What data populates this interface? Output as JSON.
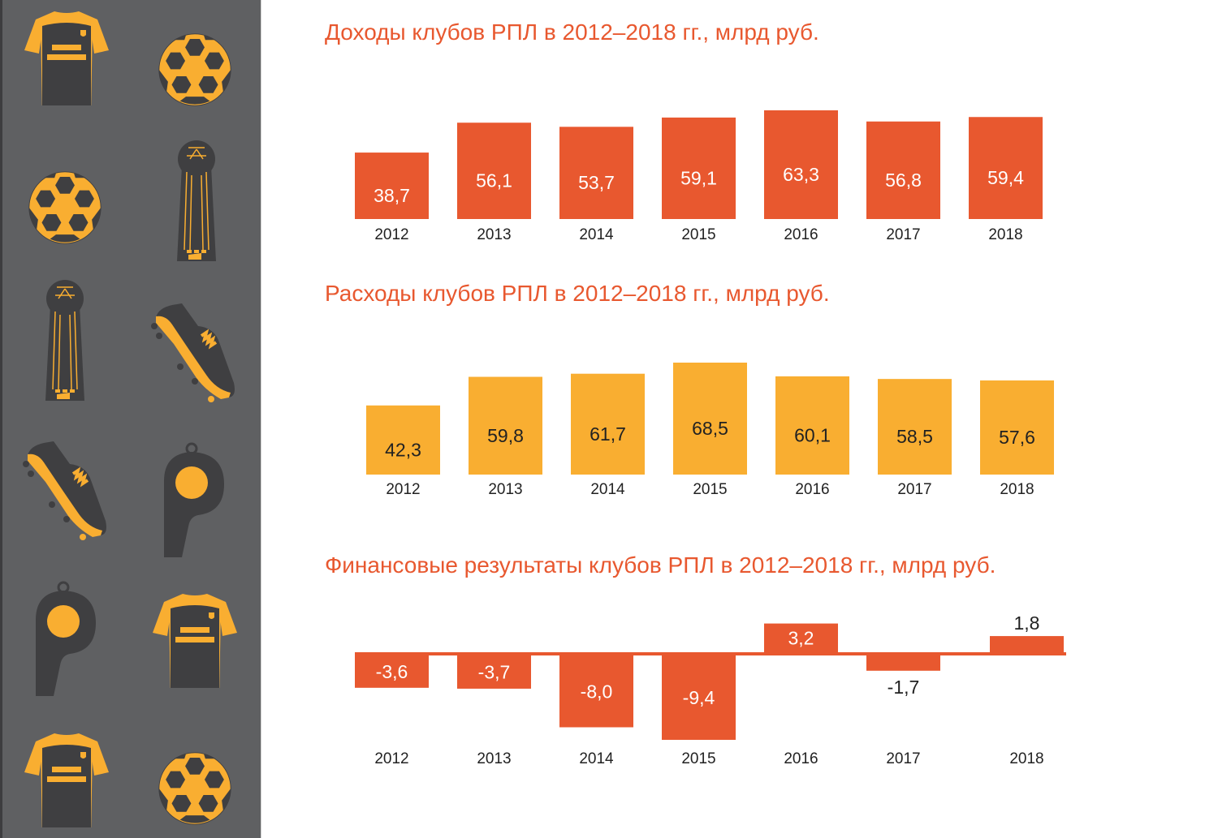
{
  "colors": {
    "sidebar_bg": "#5f6062",
    "icon_dark": "#3f3f41",
    "icon_accent": "#f9ae31",
    "income": "#e8582f",
    "expenses": "#f9ae31",
    "result": "#e8582f",
    "title": "#e8582f"
  },
  "sidebar": {
    "icons": [
      {
        "name": "jersey-icon"
      },
      {
        "name": "soccer-ball-icon"
      },
      {
        "name": "soccer-ball-icon"
      },
      {
        "name": "trophy-icon"
      },
      {
        "name": "trophy-icon"
      },
      {
        "name": "football-boot-icon"
      },
      {
        "name": "football-boot-icon"
      },
      {
        "name": "whistle-icon"
      },
      {
        "name": "whistle-icon"
      },
      {
        "name": "jersey-icon"
      },
      {
        "name": "jersey-icon"
      },
      {
        "name": "soccer-ball-icon"
      }
    ]
  },
  "chart_data": [
    {
      "type": "bar",
      "title": "Доходы клубов РПЛ в 2012–2018 гг., млрд руб.",
      "categories": [
        "2012",
        "2013",
        "2014",
        "2015",
        "2016",
        "2017",
        "2018"
      ],
      "values": [
        38.7,
        56.1,
        53.7,
        59.1,
        63.3,
        56.8,
        59.4
      ],
      "value_labels": [
        "38,7",
        "56,1",
        "53,7",
        "59,1",
        "63,3",
        "56,8",
        "59,4"
      ],
      "xlabel": "",
      "ylabel": "",
      "grid": false,
      "legend": "none",
      "color": "#e8582f",
      "label_color": "#ffffff"
    },
    {
      "type": "bar",
      "title": "Расходы клубов РПЛ в 2012–2018 гг., млрд руб.",
      "categories": [
        "2012",
        "2013",
        "2014",
        "2015",
        "2016",
        "2017",
        "2018"
      ],
      "values": [
        42.3,
        59.8,
        61.7,
        68.5,
        60.1,
        58.5,
        57.6
      ],
      "value_labels": [
        "42,3",
        "59,8",
        "61,7",
        "68,5",
        "60,1",
        "58,5",
        "57,6"
      ],
      "xlabel": "",
      "ylabel": "",
      "grid": false,
      "legend": "none",
      "color": "#f9ae31",
      "label_color": "#222222"
    },
    {
      "type": "bar",
      "title": "Финансовые результаты клубов РПЛ в 2012–2018 гг., млрд руб.",
      "categories": [
        "2012",
        "2013",
        "2014",
        "2015",
        "2016",
        "2017",
        "2018"
      ],
      "values": [
        -3.6,
        -3.7,
        -8.0,
        -9.4,
        3.2,
        -1.7,
        1.8
      ],
      "value_labels": [
        "-3,6",
        "-3,7",
        "-8,0",
        "-9,4",
        "3,2",
        "-1,7",
        "1,8"
      ],
      "xlabel": "",
      "ylabel": "",
      "grid": false,
      "legend": "none",
      "baseline": 0,
      "color": "#e8582f",
      "label_color": "#ffffff",
      "outside_label_color": "#222222"
    }
  ]
}
